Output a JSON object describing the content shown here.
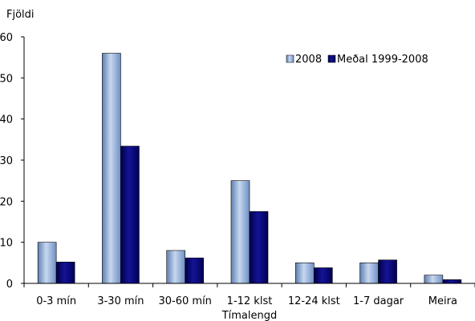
{
  "chart_data": {
    "type": "bar",
    "title": "",
    "ylabel": "Fjöldi",
    "xlabel": "Tímalengd",
    "ylim": [
      0,
      60
    ],
    "yticks": [
      0,
      10,
      20,
      30,
      40,
      50,
      60
    ],
    "grid": false,
    "legend_position": "top-right",
    "categories": [
      "0-3 mín",
      "3-30 mín",
      "30-60 mín",
      "1-12 klst",
      "12-24 klst",
      "1-7 dagar",
      "Meira"
    ],
    "series": [
      {
        "name": "2008",
        "values": [
          10,
          56,
          8,
          25,
          5,
          5,
          2
        ],
        "color": "#9ab6de"
      },
      {
        "name": "Meðal 1999-2008",
        "values": [
          5.2,
          33.4,
          6.2,
          17.5,
          3.8,
          5.7,
          0.9
        ],
        "color": "#0a0a78"
      }
    ]
  }
}
